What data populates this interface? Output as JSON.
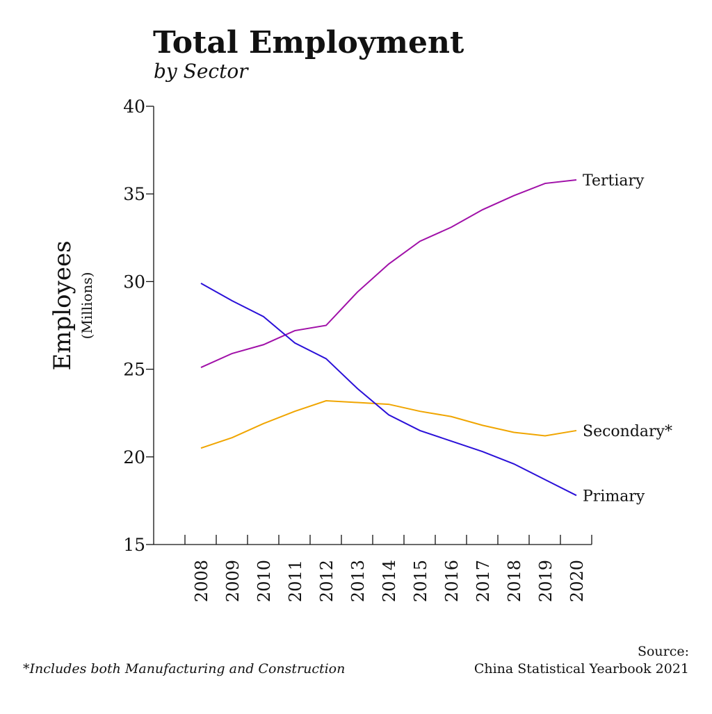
{
  "chart_data": {
    "type": "line",
    "title": "Total Employment",
    "subtitle": "by Sector",
    "ylabel": "Employees",
    "ylabel_unit": "(Millions)",
    "xlabel": "",
    "ylim": [
      15,
      40
    ],
    "yticks": [
      "15",
      "20",
      "25",
      "30",
      "35",
      "40"
    ],
    "x": [
      "2008",
      "2009",
      "2010",
      "2011",
      "2012",
      "2013",
      "2014",
      "2015",
      "2016",
      "2017",
      "2018",
      "2019",
      "2020"
    ],
    "grid": false,
    "legend": "inline labels at line ends",
    "series": [
      {
        "name": "Tertiary",
        "color": "#a010a8",
        "values": [
          25.1,
          25.9,
          26.4,
          27.2,
          27.5,
          29.4,
          31.0,
          32.3,
          33.1,
          34.1,
          34.9,
          35.6,
          35.8
        ]
      },
      {
        "name": "Secondary*",
        "color": "#f0a500",
        "values": [
          20.5,
          21.1,
          21.9,
          22.6,
          23.2,
          23.1,
          23.0,
          22.6,
          22.3,
          21.8,
          21.4,
          21.2,
          21.5
        ]
      },
      {
        "name": "Primary",
        "color": "#2a10d8",
        "values": [
          29.9,
          28.9,
          28.0,
          26.5,
          25.6,
          23.9,
          22.4,
          21.5,
          20.9,
          20.3,
          19.6,
          18.7,
          17.8
        ]
      }
    ],
    "footnote": "*Includes both Manufacturing and Construction",
    "source_label": "Source:",
    "source": "China Statistical Yearbook 2021"
  }
}
